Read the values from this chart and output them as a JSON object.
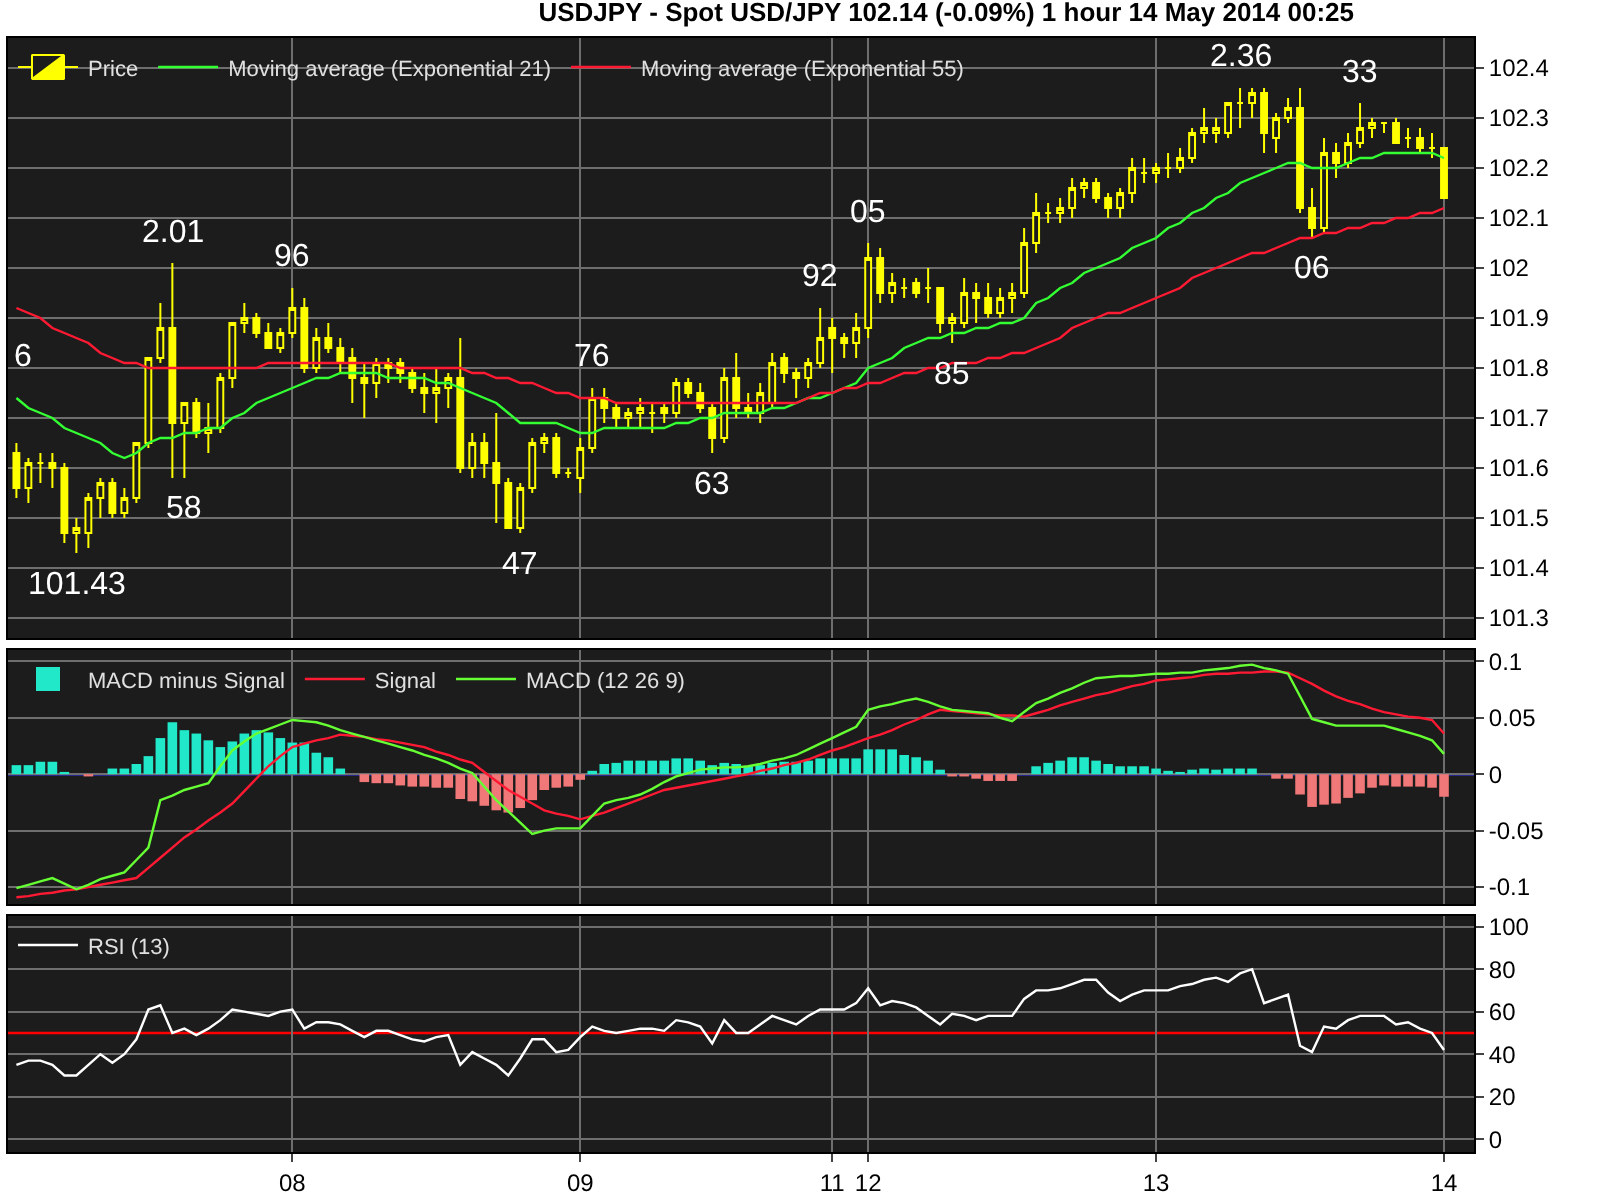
{
  "chart_data": [
    {
      "type": "candlestick",
      "title": "USDJPY - Spot USD/JPY 102.14 (-0.09%) 1 hour 14 May 2014 00:25",
      "categories": [
        null,
        null,
        null,
        null,
        null,
        null,
        null,
        null,
        null,
        null,
        null,
        null,
        null,
        null,
        null,
        null,
        null,
        null,
        null,
        null,
        null,
        null,
        null,
        "08",
        null,
        null,
        null,
        null,
        null,
        null,
        null,
        null,
        null,
        null,
        null,
        null,
        null,
        null,
        null,
        null,
        null,
        null,
        null,
        null,
        null,
        null,
        null,
        "09",
        null,
        null,
        null,
        null,
        null,
        null,
        null,
        null,
        null,
        null,
        null,
        null,
        null,
        null,
        null,
        null,
        null,
        null,
        null,
        null,
        "11",
        null,
        null,
        "12",
        null,
        null,
        null,
        null,
        null,
        null,
        null,
        null,
        null,
        null,
        null,
        null,
        null,
        null,
        null,
        null,
        null,
        null,
        null,
        null,
        null,
        null,
        null,
        "13",
        null,
        null,
        null,
        null,
        null,
        null,
        null,
        null,
        null,
        null,
        null,
        null,
        null,
        null,
        null,
        null,
        null,
        null,
        null,
        null,
        null,
        null,
        null,
        "14"
      ],
      "series": [
        {
          "name": "Price",
          "color": "#ffff00",
          "ohlc": [
            [
              101.63,
              101.65,
              101.54,
              101.56
            ],
            [
              101.56,
              101.62,
              101.53,
              101.61
            ],
            [
              101.61,
              101.63,
              101.57,
              101.61
            ],
            [
              101.61,
              101.63,
              101.56,
              101.6
            ],
            [
              101.6,
              101.61,
              101.45,
              101.47
            ],
            [
              101.47,
              101.5,
              101.43,
              101.48
            ],
            [
              101.47,
              101.55,
              101.44,
              101.54
            ],
            [
              101.54,
              101.58,
              101.5,
              101.57
            ],
            [
              101.57,
              101.58,
              101.5,
              101.51
            ],
            [
              101.51,
              101.56,
              101.5,
              101.54
            ],
            [
              101.54,
              101.65,
              101.53,
              101.65
            ],
            [
              101.65,
              101.82,
              101.64,
              101.82
            ],
            [
              101.82,
              101.93,
              101.81,
              101.88
            ],
            [
              101.88,
              102.01,
              101.58,
              101.69
            ],
            [
              101.69,
              101.73,
              101.58,
              101.73
            ],
            [
              101.73,
              101.74,
              101.66,
              101.67
            ],
            [
              101.67,
              101.73,
              101.63,
              101.68
            ],
            [
              101.68,
              101.79,
              101.67,
              101.78
            ],
            [
              101.78,
              101.89,
              101.76,
              101.89
            ],
            [
              101.89,
              101.93,
              101.87,
              101.9
            ],
            [
              101.9,
              101.91,
              101.86,
              101.87
            ],
            [
              101.87,
              101.89,
              101.84,
              101.84
            ],
            [
              101.84,
              101.88,
              101.83,
              101.87
            ],
            [
              101.87,
              101.96,
              101.86,
              101.92
            ],
            [
              101.92,
              101.94,
              101.79,
              101.8
            ],
            [
              101.8,
              101.88,
              101.79,
              101.86
            ],
            [
              101.86,
              101.89,
              101.83,
              101.84
            ],
            [
              101.84,
              101.86,
              101.79,
              101.81
            ],
            [
              101.82,
              101.84,
              101.73,
              101.78
            ],
            [
              101.78,
              101.81,
              101.7,
              101.77
            ],
            [
              101.77,
              101.82,
              101.74,
              101.81
            ],
            [
              101.81,
              101.82,
              101.77,
              101.8
            ],
            [
              101.81,
              101.82,
              101.77,
              101.79
            ],
            [
              101.79,
              101.8,
              101.75,
              101.76
            ],
            [
              101.76,
              101.79,
              101.71,
              101.75
            ],
            [
              101.75,
              101.8,
              101.69,
              101.76
            ],
            [
              101.76,
              101.79,
              101.72,
              101.78
            ],
            [
              101.78,
              101.86,
              101.59,
              101.6
            ],
            [
              101.6,
              101.67,
              101.58,
              101.65
            ],
            [
              101.65,
              101.67,
              101.58,
              101.61
            ],
            [
              101.61,
              101.71,
              101.49,
              101.57
            ],
            [
              101.57,
              101.58,
              101.48,
              101.48
            ],
            [
              101.48,
              101.57,
              101.47,
              101.56
            ],
            [
              101.56,
              101.66,
              101.55,
              101.65
            ],
            [
              101.65,
              101.67,
              101.63,
              101.66
            ],
            [
              101.66,
              101.67,
              101.58,
              101.59
            ],
            [
              101.59,
              101.6,
              101.58,
              101.59
            ],
            [
              101.58,
              101.66,
              101.55,
              101.64
            ],
            [
              101.64,
              101.76,
              101.63,
              101.74
            ],
            [
              101.74,
              101.76,
              101.69,
              101.72
            ],
            [
              101.72,
              101.73,
              101.68,
              101.7
            ],
            [
              101.7,
              101.72,
              101.68,
              101.71
            ],
            [
              101.71,
              101.74,
              101.68,
              101.72
            ],
            [
              101.71,
              101.73,
              101.67,
              101.71
            ],
            [
              101.72,
              101.73,
              101.69,
              101.71
            ],
            [
              101.71,
              101.78,
              101.7,
              101.77
            ],
            [
              101.77,
              101.78,
              101.74,
              101.75
            ],
            [
              101.75,
              101.77,
              101.71,
              101.72
            ],
            [
              101.72,
              101.73,
              101.63,
              101.66
            ],
            [
              101.66,
              101.8,
              101.65,
              101.78
            ],
            [
              101.78,
              101.83,
              101.7,
              101.72
            ],
            [
              101.72,
              101.75,
              101.7,
              101.71
            ],
            [
              101.71,
              101.77,
              101.69,
              101.75
            ],
            [
              101.73,
              101.83,
              101.72,
              101.81
            ],
            [
              101.82,
              101.83,
              101.77,
              101.79
            ],
            [
              101.79,
              101.8,
              101.74,
              101.78
            ],
            [
              101.78,
              101.82,
              101.76,
              101.81
            ],
            [
              101.81,
              101.92,
              101.8,
              101.86
            ],
            [
              101.88,
              101.9,
              101.79,
              101.86
            ],
            [
              101.86,
              101.87,
              101.82,
              101.85
            ],
            [
              101.85,
              101.91,
              101.82,
              101.88
            ],
            [
              101.88,
              102.05,
              101.86,
              102.02
            ],
            [
              102.02,
              102.04,
              101.93,
              101.95
            ],
            [
              101.95,
              101.99,
              101.93,
              101.97
            ],
            [
              101.96,
              101.98,
              101.94,
              101.96
            ],
            [
              101.97,
              101.98,
              101.94,
              101.95
            ],
            [
              101.96,
              102.0,
              101.93,
              101.96
            ],
            [
              101.96,
              101.96,
              101.87,
              101.89
            ],
            [
              101.89,
              101.91,
              101.85,
              101.9
            ],
            [
              101.89,
              101.98,
              101.88,
              101.95
            ],
            [
              101.95,
              101.97,
              101.89,
              101.94
            ],
            [
              101.94,
              101.97,
              101.9,
              101.91
            ],
            [
              101.91,
              101.96,
              101.9,
              101.94
            ],
            [
              101.94,
              101.97,
              101.91,
              101.95
            ],
            [
              101.95,
              102.08,
              101.94,
              102.05
            ],
            [
              102.05,
              102.15,
              102.03,
              102.11
            ],
            [
              102.11,
              102.13,
              102.09,
              102.11
            ],
            [
              102.11,
              102.14,
              102.09,
              102.12
            ],
            [
              102.12,
              102.18,
              102.1,
              102.16
            ],
            [
              102.16,
              102.18,
              102.14,
              102.17
            ],
            [
              102.17,
              102.18,
              102.13,
              102.14
            ],
            [
              102.14,
              102.15,
              102.1,
              102.12
            ],
            [
              102.12,
              102.16,
              102.1,
              102.15
            ],
            [
              102.15,
              102.22,
              102.13,
              102.2
            ],
            [
              102.19,
              102.22,
              102.17,
              102.19
            ],
            [
              102.19,
              102.21,
              102.17,
              102.2
            ],
            [
              102.2,
              102.23,
              102.18,
              102.2
            ],
            [
              102.2,
              102.24,
              102.19,
              102.22
            ],
            [
              102.22,
              102.28,
              102.21,
              102.27
            ],
            [
              102.27,
              102.32,
              102.25,
              102.28
            ],
            [
              102.27,
              102.3,
              102.25,
              102.28
            ],
            [
              102.27,
              102.33,
              102.26,
              102.33
            ],
            [
              102.33,
              102.36,
              102.28,
              102.33
            ],
            [
              102.33,
              102.36,
              102.3,
              102.35
            ],
            [
              102.35,
              102.36,
              102.23,
              102.27
            ],
            [
              102.26,
              102.31,
              102.23,
              102.3
            ],
            [
              102.3,
              102.34,
              102.29,
              102.32
            ],
            [
              102.32,
              102.36,
              102.11,
              102.12
            ],
            [
              102.12,
              102.16,
              102.06,
              102.08
            ],
            [
              102.08,
              102.26,
              102.07,
              102.23
            ],
            [
              102.23,
              102.25,
              102.18,
              102.21
            ],
            [
              102.21,
              102.27,
              102.2,
              102.25
            ],
            [
              102.25,
              102.33,
              102.24,
              102.28
            ],
            [
              102.28,
              102.3,
              102.26,
              102.29
            ],
            [
              102.29,
              102.29,
              102.27,
              102.29
            ],
            [
              102.29,
              102.3,
              102.25,
              102.25
            ],
            [
              102.26,
              102.28,
              102.24,
              102.26
            ],
            [
              102.26,
              102.28,
              102.23,
              102.24
            ],
            [
              102.24,
              102.27,
              102.22,
              102.24
            ],
            [
              102.24,
              102.24,
              102.14,
              102.14
            ]
          ]
        },
        {
          "name": "Moving average (Exponential 21)",
          "type": "line",
          "color": "#33ff33",
          "values": [
            101.74,
            101.72,
            101.71,
            101.7,
            101.68,
            101.67,
            101.66,
            101.65,
            101.63,
            101.62,
            101.63,
            101.65,
            101.66,
            101.66,
            101.67,
            101.67,
            101.68,
            101.68,
            101.7,
            101.71,
            101.73,
            101.74,
            101.75,
            101.76,
            101.77,
            101.78,
            101.78,
            101.79,
            101.79,
            101.79,
            101.79,
            101.78,
            101.78,
            101.78,
            101.78,
            101.77,
            101.77,
            101.76,
            101.75,
            101.74,
            101.73,
            101.71,
            101.69,
            101.69,
            101.69,
            101.69,
            101.68,
            101.67,
            101.67,
            101.68,
            101.68,
            101.68,
            101.68,
            101.68,
            101.68,
            101.69,
            101.69,
            101.7,
            101.7,
            101.71,
            101.71,
            101.71,
            101.71,
            101.72,
            101.72,
            101.73,
            101.74,
            101.74,
            101.75,
            101.76,
            101.77,
            101.8,
            101.81,
            101.82,
            101.84,
            101.85,
            101.86,
            101.86,
            101.87,
            101.87,
            101.88,
            101.88,
            101.89,
            101.89,
            101.9,
            101.93,
            101.94,
            101.96,
            101.97,
            101.99,
            102.0,
            102.01,
            102.02,
            102.04,
            102.05,
            102.06,
            102.08,
            102.09,
            102.11,
            102.12,
            102.14,
            102.15,
            102.17,
            102.18,
            102.19,
            102.2,
            102.21,
            102.21,
            102.2,
            102.2,
            102.2,
            102.21,
            102.22,
            102.22,
            102.23,
            102.23,
            102.23,
            102.23,
            102.23,
            102.22
          ]
        },
        {
          "name": "Moving average (Exponential 55)",
          "type": "line",
          "color": "#ff1a33",
          "values": [
            101.92,
            101.91,
            101.9,
            101.88,
            101.87,
            101.86,
            101.85,
            101.83,
            101.82,
            101.81,
            101.81,
            101.8,
            101.8,
            101.8,
            101.8,
            101.8,
            101.8,
            101.8,
            101.8,
            101.8,
            101.8,
            101.81,
            101.81,
            101.81,
            101.81,
            101.81,
            101.81,
            101.81,
            101.81,
            101.81,
            101.81,
            101.81,
            101.8,
            101.8,
            101.8,
            101.8,
            101.8,
            101.8,
            101.79,
            101.79,
            101.78,
            101.78,
            101.77,
            101.77,
            101.76,
            101.75,
            101.75,
            101.74,
            101.74,
            101.74,
            101.73,
            101.73,
            101.73,
            101.73,
            101.73,
            101.73,
            101.73,
            101.73,
            101.73,
            101.73,
            101.73,
            101.73,
            101.73,
            101.73,
            101.73,
            101.73,
            101.74,
            101.75,
            101.75,
            101.76,
            101.76,
            101.77,
            101.77,
            101.78,
            101.79,
            101.79,
            101.8,
            101.8,
            101.81,
            101.81,
            101.81,
            101.82,
            101.82,
            101.83,
            101.83,
            101.84,
            101.85,
            101.86,
            101.88,
            101.89,
            101.9,
            101.91,
            101.91,
            101.92,
            101.93,
            101.94,
            101.95,
            101.96,
            101.98,
            101.99,
            102.0,
            102.01,
            102.02,
            102.03,
            102.03,
            102.04,
            102.05,
            102.06,
            102.06,
            102.07,
            102.07,
            102.08,
            102.08,
            102.09,
            102.09,
            102.1,
            102.1,
            102.11,
            102.11,
            102.12
          ]
        }
      ],
      "annotations": [
        "6",
        {
          "text": "101.43",
          "y": 101.43
        },
        {
          "text": "2.01",
          "y": 102.01
        },
        {
          "text": "58",
          "y": 101.58
        },
        {
          "text": "96",
          "y": 101.96
        },
        {
          "text": "47",
          "y": 101.47
        },
        {
          "text": "76",
          "y": 101.76
        },
        {
          "text": "63",
          "y": 101.63
        },
        {
          "text": "92",
          "y": 101.92
        },
        {
          "text": "05",
          "y": 102.05
        },
        {
          "text": "85",
          "y": 101.85
        },
        {
          "text": "2.36",
          "y": 102.36
        },
        {
          "text": "06",
          "y": 102.06
        },
        {
          "text": "33",
          "y": 102.33
        }
      ],
      "ylim": [
        101.26,
        102.46
      ],
      "yticks": [
        101.3,
        101.4,
        101.5,
        101.6,
        101.7,
        101.8,
        101.9,
        102,
        102.1,
        102.2,
        102.3,
        102.4
      ],
      "grid": true,
      "legend": "top left",
      "tick_labels": "y"
    },
    {
      "type": "bar",
      "categories": [
        null,
        null,
        null,
        null,
        null,
        null,
        null,
        null,
        null,
        null,
        null,
        null,
        null,
        null,
        null,
        null,
        null,
        null,
        null,
        null,
        null,
        null,
        null,
        "08",
        null,
        null,
        null,
        null,
        null,
        null,
        null,
        null,
        null,
        null,
        null,
        null,
        null,
        null,
        null,
        null,
        null,
        null,
        null,
        null,
        null,
        null,
        null,
        "09",
        null,
        null,
        null,
        null,
        null,
        null,
        null,
        null,
        null,
        null,
        null,
        null,
        null,
        null,
        null,
        null,
        null,
        null,
        null,
        null,
        "11",
        null,
        null,
        "12",
        null,
        null,
        null,
        null,
        null,
        null,
        null,
        null,
        null,
        null,
        null,
        null,
        null,
        null,
        null,
        null,
        null,
        null,
        null,
        null,
        null,
        null,
        null,
        "13",
        null,
        null,
        null,
        null,
        null,
        null,
        null,
        null,
        null,
        null,
        null,
        null,
        null,
        null,
        null,
        null,
        null,
        null,
        null,
        null,
        null,
        null,
        null,
        "14"
      ],
      "series": [
        {
          "name": "MACD minus Signal",
          "values": [
            0.008,
            0.008,
            0.011,
            0.011,
            0.002,
            0,
            -0.002,
            0,
            0.005,
            0.005,
            0.009,
            0.016,
            0.032,
            0.046,
            0.039,
            0.036,
            0.03,
            0.024,
            0.029,
            0.036,
            0.039,
            0.037,
            0.032,
            0.028,
            0.028,
            0.019,
            0.015,
            0.005,
            0,
            -0.007,
            -0.008,
            -0.008,
            -0.01,
            -0.011,
            -0.011,
            -0.012,
            -0.012,
            -0.022,
            -0.024,
            -0.028,
            -0.032,
            -0.034,
            -0.03,
            -0.023,
            -0.014,
            -0.012,
            -0.011,
            -0.005,
            0.003,
            0.009,
            0.01,
            0.012,
            0.012,
            0.012,
            0.012,
            0.014,
            0.014,
            0.012,
            0.008,
            0.01,
            0.009,
            0.007,
            0.008,
            0.01,
            0.011,
            0.011,
            0.012,
            0.014,
            0.014,
            0.014,
            0.014,
            0.022,
            0.022,
            0.022,
            0.017,
            0.015,
            0.012,
            0.004,
            -0.002,
            -0.002,
            -0.004,
            -0.006,
            -0.006,
            -0.006,
            0,
            0.007,
            0.01,
            0.012,
            0.015,
            0.015,
            0.012,
            0.009,
            0.007,
            0.007,
            0.007,
            0.005,
            0.003,
            0.002,
            0.004,
            0.005,
            0.004,
            0.005,
            0.005,
            0.005,
            0,
            -0.004,
            -0.004,
            -0.018,
            -0.029,
            -0.027,
            -0.026,
            -0.021,
            -0.017,
            -0.012,
            -0.01,
            -0.011,
            -0.011,
            -0.011,
            -0.012,
            -0.02
          ],
          "colors": [
            "#20e8c8",
            "#20e8c8",
            "#20e8c8",
            "#20e8c8",
            "#20e8c8",
            "#20e8c8",
            "#f07878",
            "#20e8c8",
            "#20e8c8",
            "#20e8c8",
            "#20e8c8",
            "#20e8c8",
            "#20e8c8",
            "#20e8c8",
            "#20e8c8",
            "#20e8c8",
            "#20e8c8",
            "#20e8c8",
            "#20e8c8",
            "#20e8c8",
            "#20e8c8",
            "#20e8c8",
            "#20e8c8",
            "#20e8c8",
            "#20e8c8",
            "#20e8c8",
            "#20e8c8",
            "#20e8c8",
            "#20e8c8",
            "#f07878",
            "#f07878",
            "#f07878",
            "#f07878",
            "#f07878",
            "#f07878",
            "#f07878",
            "#f07878",
            "#f07878",
            "#f07878",
            "#f07878",
            "#f07878",
            "#f07878",
            "#f07878",
            "#f07878",
            "#f07878",
            "#f07878",
            "#f07878",
            "#f07878",
            "#20e8c8",
            "#20e8c8",
            "#20e8c8",
            "#20e8c8",
            "#20e8c8",
            "#20e8c8",
            "#20e8c8",
            "#20e8c8",
            "#20e8c8",
            "#20e8c8",
            "#20e8c8",
            "#20e8c8",
            "#20e8c8",
            "#20e8c8",
            "#20e8c8",
            "#20e8c8",
            "#20e8c8",
            "#20e8c8",
            "#20e8c8",
            "#20e8c8",
            "#20e8c8",
            "#20e8c8",
            "#20e8c8",
            "#20e8c8",
            "#20e8c8",
            "#20e8c8",
            "#20e8c8",
            "#20e8c8",
            "#20e8c8",
            "#20e8c8",
            "#f07878",
            "#f07878",
            "#f07878",
            "#f07878",
            "#f07878",
            "#f07878",
            "#20e8c8",
            "#20e8c8",
            "#20e8c8",
            "#20e8c8",
            "#20e8c8",
            "#20e8c8",
            "#20e8c8",
            "#20e8c8",
            "#20e8c8",
            "#20e8c8",
            "#20e8c8",
            "#20e8c8",
            "#20e8c8",
            "#20e8c8",
            "#20e8c8",
            "#20e8c8",
            "#20e8c8",
            "#20e8c8",
            "#20e8c8",
            "#20e8c8",
            "#20e8c8",
            "#f07878",
            "#f07878",
            "#f07878",
            "#f07878",
            "#f07878",
            "#f07878",
            "#f07878",
            "#f07878",
            "#f07878",
            "#f07878",
            "#f07878",
            "#f07878",
            "#f07878",
            "#f07878",
            "#f07878"
          ]
        },
        {
          "name": "Signal",
          "type": "line",
          "color": "#ff1a33",
          "values": [
            -0.109,
            -0.108,
            -0.106,
            -0.105,
            -0.103,
            -0.102,
            -0.1,
            -0.098,
            -0.096,
            -0.094,
            -0.092,
            -0.083,
            -0.074,
            -0.065,
            -0.056,
            -0.049,
            -0.041,
            -0.034,
            -0.026,
            -0.015,
            -0.004,
            0.007,
            0.016,
            0.024,
            0.027,
            0.03,
            0.032,
            0.035,
            0.034,
            0.033,
            0.031,
            0.03,
            0.028,
            0.026,
            0.024,
            0.02,
            0.017,
            0.013,
            0.01,
            0.002,
            -0.006,
            -0.014,
            -0.02,
            -0.026,
            -0.032,
            -0.035,
            -0.037,
            -0.04,
            -0.037,
            -0.034,
            -0.03,
            -0.026,
            -0.022,
            -0.018,
            -0.014,
            -0.012,
            -0.01,
            -0.008,
            -0.006,
            -0.004,
            -0.002,
            0,
            0.003,
            0.005,
            0.008,
            0.01,
            0.013,
            0.017,
            0.021,
            0.024,
            0.028,
            0.032,
            0.035,
            0.039,
            0.044,
            0.048,
            0.053,
            0.057,
            0.056,
            0.055,
            0.054,
            0.053,
            0.052,
            0.052,
            0.051,
            0.054,
            0.057,
            0.061,
            0.064,
            0.067,
            0.07,
            0.072,
            0.075,
            0.078,
            0.08,
            0.083,
            0.084,
            0.085,
            0.086,
            0.088,
            0.089,
            0.089,
            0.09,
            0.09,
            0.091,
            0.091,
            0.09,
            0.085,
            0.08,
            0.074,
            0.069,
            0.065,
            0.062,
            0.058,
            0.055,
            0.053,
            0.051,
            0.05,
            0.048,
            0.036
          ]
        },
        {
          "name": "MACD (12 26 9)",
          "type": "line",
          "color": "#66ff33",
          "values": [
            -0.101,
            -0.098,
            -0.095,
            -0.092,
            -0.097,
            -0.102,
            -0.098,
            -0.093,
            -0.09,
            -0.087,
            -0.076,
            -0.065,
            -0.023,
            -0.019,
            -0.014,
            -0.011,
            -0.008,
            0.007,
            0.021,
            0.029,
            0.036,
            0.04,
            0.044,
            0.048,
            0.047,
            0.046,
            0.043,
            0.039,
            0.036,
            0.033,
            0.03,
            0.027,
            0.024,
            0.021,
            0.017,
            0.014,
            0.01,
            0.005,
            0.001,
            -0.011,
            -0.023,
            -0.033,
            -0.043,
            -0.053,
            -0.05,
            -0.048,
            -0.048,
            -0.048,
            -0.037,
            -0.026,
            -0.023,
            -0.021,
            -0.018,
            -0.013,
            -0.007,
            -0.002,
            0.001,
            0.004,
            0.005,
            0.006,
            0.006,
            0.007,
            0.009,
            0.012,
            0.014,
            0.017,
            0.022,
            0.027,
            0.032,
            0.037,
            0.042,
            0.057,
            0.06,
            0.062,
            0.065,
            0.067,
            0.064,
            0.06,
            0.057,
            0.056,
            0.055,
            0.054,
            0.05,
            0.047,
            0.055,
            0.063,
            0.067,
            0.072,
            0.076,
            0.081,
            0.085,
            0.086,
            0.087,
            0.087,
            0.088,
            0.089,
            0.089,
            0.09,
            0.09,
            0.092,
            0.093,
            0.094,
            0.096,
            0.097,
            0.094,
            0.092,
            0.089,
            0.069,
            0.049,
            0.046,
            0.043,
            0.043,
            0.043,
            0.043,
            0.043,
            0.04,
            0.037,
            0.034,
            0.03,
            0.018
          ]
        }
      ],
      "ref_lines": [
        {
          "axis": "y",
          "value": 0,
          "color": "#3333ff"
        }
      ],
      "ylim": [
        -0.115,
        0.11
      ],
      "yticks": [
        -0.1,
        -0.05,
        0,
        0.05,
        0.1
      ],
      "grid": true,
      "legend": "top left",
      "tick_labels": "y"
    },
    {
      "type": "line",
      "categories": [
        null,
        null,
        null,
        null,
        null,
        null,
        null,
        null,
        null,
        null,
        null,
        null,
        null,
        null,
        null,
        null,
        null,
        null,
        null,
        null,
        null,
        null,
        null,
        "08",
        null,
        null,
        null,
        null,
        null,
        null,
        null,
        null,
        null,
        null,
        null,
        null,
        null,
        null,
        null,
        null,
        null,
        null,
        null,
        null,
        null,
        null,
        null,
        "09",
        null,
        null,
        null,
        null,
        null,
        null,
        null,
        null,
        null,
        null,
        null,
        null,
        null,
        null,
        null,
        null,
        null,
        null,
        null,
        null,
        "11",
        null,
        null,
        "12",
        null,
        null,
        null,
        null,
        null,
        null,
        null,
        null,
        null,
        null,
        null,
        null,
        null,
        null,
        null,
        null,
        null,
        null,
        null,
        null,
        null,
        null,
        null,
        "13",
        null,
        null,
        null,
        null,
        null,
        null,
        null,
        null,
        null,
        null,
        null,
        null,
        null,
        null,
        null,
        null,
        null,
        null,
        null,
        null,
        null,
        null,
        null,
        "14"
      ],
      "series": [
        {
          "name": "RSI (13)",
          "color": "#ffffff",
          "values": [
            35,
            37,
            37,
            35,
            30,
            30,
            35,
            40,
            36,
            40,
            47,
            61,
            63,
            50,
            52,
            49,
            52,
            56,
            61,
            60,
            59,
            58,
            60,
            61,
            52,
            55,
            55,
            54,
            51,
            48,
            51,
            51,
            49,
            47,
            46,
            48,
            49,
            35,
            41,
            38,
            35,
            30,
            38,
            47,
            47,
            41,
            42,
            48,
            53,
            51,
            50,
            51,
            52,
            52,
            51,
            56,
            55,
            53,
            45,
            56,
            50,
            50,
            54,
            58,
            56,
            54,
            58,
            61,
            61,
            61,
            64,
            71,
            63,
            65,
            64,
            62,
            58,
            54,
            59,
            58,
            56,
            58,
            58,
            58,
            66,
            70,
            70,
            71,
            73,
            75,
            75,
            69,
            65,
            68,
            70,
            70,
            70,
            72,
            73,
            75,
            76,
            74,
            78,
            80,
            64,
            66,
            68,
            44,
            41,
            53,
            52,
            56,
            58,
            58,
            58,
            54,
            55,
            52,
            50,
            42
          ]
        }
      ],
      "ref_lines": [
        {
          "axis": "y",
          "value": 50,
          "color": "#ff0000"
        }
      ],
      "ylim": [
        -6,
        105
      ],
      "yticks": [
        0,
        20,
        40,
        60,
        80,
        100
      ],
      "grid": true,
      "legend": "top left"
    }
  ]
}
